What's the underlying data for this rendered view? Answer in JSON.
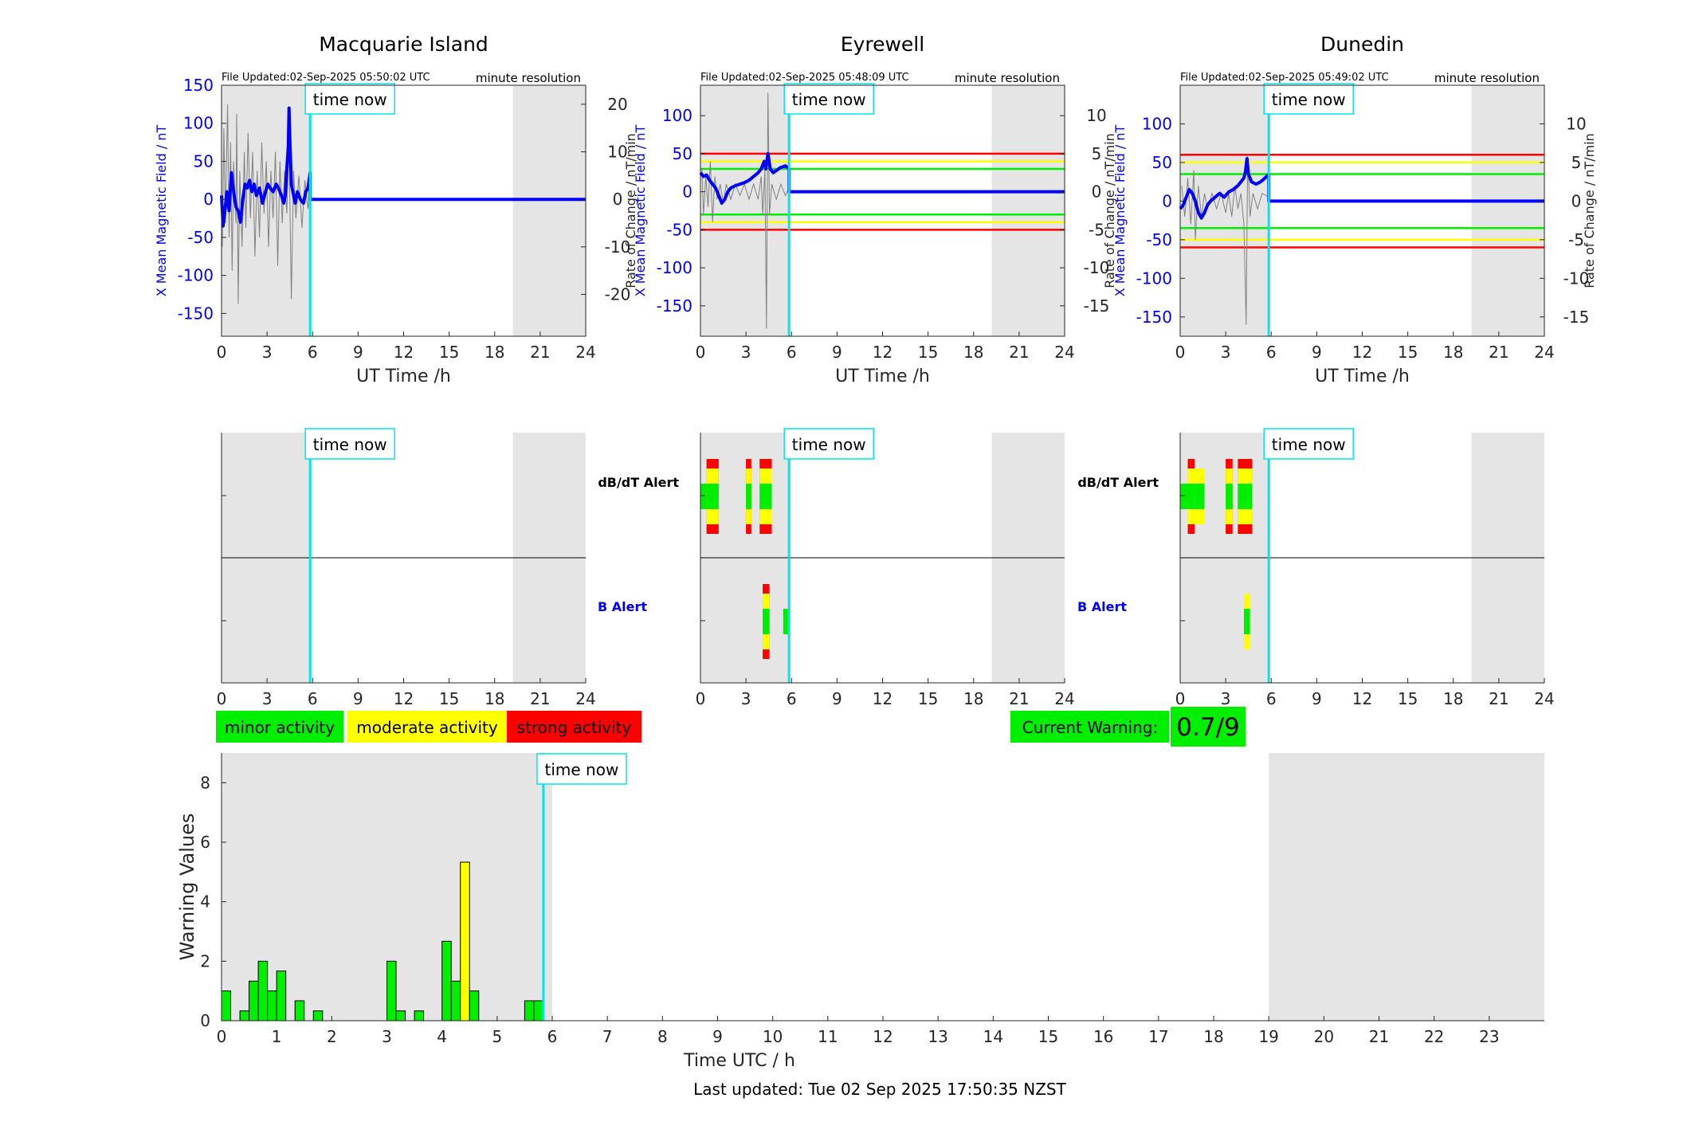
{
  "common": {
    "time_now_label": "time now",
    "resolution_label": "minute resolution",
    "x_label": "UT Time /h",
    "left_ylabel": "X Mean Magnetic Field / nT",
    "right_ylabel": "Rate of Change / nT/min",
    "x_ticks": [
      0,
      3,
      6,
      9,
      12,
      15,
      18,
      21,
      24
    ],
    "time_now_hour": 5.84,
    "night_shade_start_hour": 19.2,
    "dbdt_alert_label": "dB/dT Alert",
    "b_alert_label": "B Alert"
  },
  "colors": {
    "minor": "#00ee00",
    "moderate": "#ffff00",
    "strong": "#ff0000",
    "field_series": "#0000ff",
    "rate_series": "#808080",
    "time_now": "#00e5ee",
    "shade": "#e5e5e5"
  },
  "legend": {
    "minor": "minor activity",
    "moderate": "moderate activity",
    "strong": "strong activity"
  },
  "current_warning": {
    "label": "Current Warning:",
    "value": "0.7/9"
  },
  "footer": {
    "last_updated": "Last updated: Tue 02 Sep 2025 17:50:35 NZST"
  },
  "chart_data": [
    {
      "type": "line",
      "title": "Macquarie Island",
      "file_updated": "File Updated:02-Sep-2025 05:50:02 UTC",
      "ylim": [
        -180,
        150
      ],
      "y_ticks": [
        -150,
        -100,
        -50,
        0,
        50,
        100,
        150
      ],
      "y2lim": [
        -28.8,
        24
      ],
      "y2_ticks": [
        -20,
        -10,
        0,
        10,
        20
      ],
      "thresholds": [],
      "field": [
        [
          0,
          5
        ],
        [
          0.1,
          -35
        ],
        [
          0.2,
          -20
        ],
        [
          0.35,
          10
        ],
        [
          0.5,
          -15
        ],
        [
          0.65,
          35
        ],
        [
          0.8,
          10
        ],
        [
          0.95,
          -10
        ],
        [
          1.1,
          -15
        ],
        [
          1.25,
          -30
        ],
        [
          1.4,
          0
        ],
        [
          1.55,
          20
        ],
        [
          1.7,
          15
        ],
        [
          1.85,
          25
        ],
        [
          2.0,
          10
        ],
        [
          2.15,
          20
        ],
        [
          2.3,
          5
        ],
        [
          2.5,
          15
        ],
        [
          2.7,
          -5
        ],
        [
          2.9,
          10
        ],
        [
          3.05,
          20
        ],
        [
          3.2,
          15
        ],
        [
          3.4,
          10
        ],
        [
          3.6,
          20
        ],
        [
          3.75,
          15
        ],
        [
          3.95,
          5
        ],
        [
          4.1,
          -5
        ],
        [
          4.2,
          5
        ],
        [
          4.3,
          40
        ],
        [
          4.4,
          70
        ],
        [
          4.45,
          120
        ],
        [
          4.5,
          80
        ],
        [
          4.6,
          20
        ],
        [
          4.7,
          10
        ],
        [
          4.85,
          -5
        ],
        [
          5.0,
          10
        ],
        [
          5.2,
          0
        ],
        [
          5.4,
          -5
        ],
        [
          5.55,
          10
        ],
        [
          5.7,
          15
        ],
        [
          5.84,
          35
        ],
        [
          5.84,
          0
        ],
        [
          24,
          0
        ]
      ],
      "rate": [
        [
          0.05,
          -10
        ],
        [
          0.15,
          15
        ],
        [
          0.25,
          -5
        ],
        [
          0.4,
          20
        ],
        [
          0.5,
          -8
        ],
        [
          0.6,
          12
        ],
        [
          0.7,
          -15
        ],
        [
          0.8,
          8
        ],
        [
          0.95,
          -5
        ],
        [
          1.0,
          18
        ],
        [
          1.1,
          -22
        ],
        [
          1.2,
          6
        ],
        [
          1.35,
          -10
        ],
        [
          1.5,
          10
        ],
        [
          1.6,
          -6
        ],
        [
          1.75,
          14
        ],
        [
          1.9,
          -4
        ],
        [
          2.05,
          10
        ],
        [
          2.2,
          -12
        ],
        [
          2.35,
          6
        ],
        [
          2.5,
          -8
        ],
        [
          2.65,
          12
        ],
        [
          2.8,
          -3
        ],
        [
          2.95,
          8
        ],
        [
          3.1,
          -10
        ],
        [
          3.25,
          6
        ],
        [
          3.4,
          -4
        ],
        [
          3.55,
          10
        ],
        [
          3.7,
          -14
        ],
        [
          3.85,
          8
        ],
        [
          4.0,
          -5
        ],
        [
          4.15,
          6
        ],
        [
          4.3,
          -3
        ],
        [
          4.45,
          12
        ],
        [
          4.6,
          -21
        ],
        [
          4.75,
          6
        ],
        [
          4.9,
          -4
        ],
        [
          5.1,
          5
        ],
        [
          5.3,
          -6
        ],
        [
          5.5,
          4
        ],
        [
          5.7,
          -2
        ],
        [
          5.84,
          3
        ]
      ],
      "dbdt_alerts": [],
      "b_alerts": []
    },
    {
      "type": "line",
      "title": "Eyrewell",
      "file_updated": "File Updated:02-Sep-2025 05:48:09 UTC",
      "ylim": [
        -190,
        140
      ],
      "y_ticks": [
        -150,
        -100,
        -50,
        0,
        50,
        100
      ],
      "y2lim": [
        -19,
        14
      ],
      "y2_ticks": [
        -15,
        -10,
        -5,
        0,
        5,
        10
      ],
      "thresholds": [
        {
          "level": "strong",
          "value": 50
        },
        {
          "level": "moderate",
          "value": 40
        },
        {
          "level": "minor",
          "value": 30
        },
        {
          "level": "minor",
          "value": -30
        },
        {
          "level": "moderate",
          "value": -40
        },
        {
          "level": "strong",
          "value": -50
        }
      ],
      "field": [
        [
          0,
          25
        ],
        [
          0.2,
          20
        ],
        [
          0.4,
          22
        ],
        [
          0.6,
          15
        ],
        [
          0.8,
          10
        ],
        [
          1.0,
          5
        ],
        [
          1.2,
          -5
        ],
        [
          1.4,
          -15
        ],
        [
          1.6,
          -10
        ],
        [
          1.8,
          0
        ],
        [
          2.0,
          5
        ],
        [
          2.3,
          8
        ],
        [
          2.6,
          10
        ],
        [
          2.9,
          12
        ],
        [
          3.2,
          15
        ],
        [
          3.5,
          20
        ],
        [
          3.8,
          25
        ],
        [
          4.0,
          30
        ],
        [
          4.2,
          40
        ],
        [
          4.3,
          30
        ],
        [
          4.45,
          50
        ],
        [
          4.6,
          30
        ],
        [
          4.8,
          25
        ],
        [
          5.0,
          28
        ],
        [
          5.3,
          32
        ],
        [
          5.6,
          34
        ],
        [
          5.84,
          30
        ],
        [
          5.84,
          0
        ],
        [
          24,
          0
        ]
      ],
      "rate": [
        [
          0.1,
          3
        ],
        [
          0.2,
          -3
        ],
        [
          0.35,
          2
        ],
        [
          0.5,
          -2
        ],
        [
          0.65,
          4
        ],
        [
          0.8,
          -4
        ],
        [
          0.95,
          2
        ],
        [
          1.1,
          -1
        ],
        [
          1.3,
          1
        ],
        [
          1.5,
          -1.5
        ],
        [
          1.7,
          1
        ],
        [
          2.0,
          -1
        ],
        [
          2.3,
          1
        ],
        [
          2.6,
          -0.5
        ],
        [
          2.9,
          1
        ],
        [
          3.2,
          -1
        ],
        [
          3.5,
          1
        ],
        [
          3.8,
          -1
        ],
        [
          4.0,
          2
        ],
        [
          4.1,
          -3
        ],
        [
          4.25,
          3
        ],
        [
          4.35,
          -18
        ],
        [
          4.45,
          13
        ],
        [
          4.55,
          -3
        ],
        [
          4.7,
          1
        ],
        [
          5.0,
          -1
        ],
        [
          5.3,
          1
        ],
        [
          5.6,
          -0.5
        ],
        [
          5.84,
          0.5
        ]
      ],
      "dbdt_alerts": [
        {
          "start": 0,
          "end": 0.4,
          "level": "minor"
        },
        {
          "start": 0.4,
          "end": 1.2,
          "level": "strong"
        },
        {
          "start": 3.0,
          "end": 3.35,
          "level": "strong"
        },
        {
          "start": 3.9,
          "end": 4.7,
          "level": "strong"
        }
      ],
      "b_alerts": [
        {
          "start": 4.1,
          "end": 4.55,
          "level": "strong"
        },
        {
          "start": 5.45,
          "end": 5.85,
          "level": "minor"
        }
      ]
    },
    {
      "type": "line",
      "title": "Dunedin",
      "file_updated": "File Updated:02-Sep-2025 05:49:02 UTC",
      "ylim": [
        -175,
        150
      ],
      "y_ticks": [
        -150,
        -100,
        -50,
        0,
        50,
        100
      ],
      "y2lim": [
        -17.5,
        15
      ],
      "y2_ticks": [
        -15,
        -10,
        -5,
        0,
        5,
        10
      ],
      "thresholds": [
        {
          "level": "strong",
          "value": 60
        },
        {
          "level": "moderate",
          "value": 50
        },
        {
          "level": "minor",
          "value": 35
        },
        {
          "level": "minor",
          "value": -35
        },
        {
          "level": "moderate",
          "value": -50
        },
        {
          "level": "strong",
          "value": -60
        }
      ],
      "field": [
        [
          0,
          -10
        ],
        [
          0.2,
          -5
        ],
        [
          0.4,
          5
        ],
        [
          0.6,
          15
        ],
        [
          0.8,
          10
        ],
        [
          1.0,
          0
        ],
        [
          1.2,
          -15
        ],
        [
          1.4,
          -22
        ],
        [
          1.6,
          -15
        ],
        [
          1.8,
          -5
        ],
        [
          2.0,
          0
        ],
        [
          2.3,
          5
        ],
        [
          2.6,
          10
        ],
        [
          2.9,
          5
        ],
        [
          3.2,
          12
        ],
        [
          3.5,
          15
        ],
        [
          3.8,
          20
        ],
        [
          4.0,
          25
        ],
        [
          4.2,
          30
        ],
        [
          4.3,
          38
        ],
        [
          4.4,
          55
        ],
        [
          4.5,
          35
        ],
        [
          4.7,
          25
        ],
        [
          5.0,
          22
        ],
        [
          5.3,
          25
        ],
        [
          5.6,
          30
        ],
        [
          5.84,
          35
        ],
        [
          5.84,
          0
        ],
        [
          24,
          0
        ]
      ],
      "rate": [
        [
          0.1,
          2
        ],
        [
          0.3,
          -2
        ],
        [
          0.5,
          3
        ],
        [
          0.7,
          -3
        ],
        [
          0.9,
          4
        ],
        [
          1.0,
          -5
        ],
        [
          1.2,
          2
        ],
        [
          1.4,
          -2
        ],
        [
          1.6,
          1
        ],
        [
          1.8,
          -1
        ],
        [
          2.1,
          1
        ],
        [
          2.4,
          -1
        ],
        [
          2.7,
          1
        ],
        [
          3.0,
          -1.5
        ],
        [
          3.2,
          1
        ],
        [
          3.4,
          -2
        ],
        [
          3.6,
          2
        ],
        [
          3.8,
          -1
        ],
        [
          4.0,
          1
        ],
        [
          4.2,
          -3
        ],
        [
          4.35,
          -16
        ],
        [
          4.45,
          6
        ],
        [
          4.6,
          -2
        ],
        [
          4.8,
          1
        ],
        [
          5.1,
          -1
        ],
        [
          5.4,
          1
        ],
        [
          5.84,
          0.5
        ]
      ],
      "dbdt_alerts": [
        {
          "start": 0,
          "end": 0.5,
          "level": "minor"
        },
        {
          "start": 0.5,
          "end": 0.95,
          "level": "strong"
        },
        {
          "start": 0.95,
          "end": 1.6,
          "level": "moderate"
        },
        {
          "start": 3.0,
          "end": 3.45,
          "level": "strong"
        },
        {
          "start": 3.8,
          "end": 4.75,
          "level": "strong"
        }
      ],
      "b_alerts": [
        {
          "start": 4.2,
          "end": 4.6,
          "level": "moderate"
        }
      ]
    },
    {
      "type": "bar",
      "title": "",
      "xlabel": "Time UTC / h",
      "ylabel": "Warning Values",
      "xlim": [
        0,
        24
      ],
      "ylim": [
        0,
        9
      ],
      "y_ticks": [
        0,
        2,
        4,
        6,
        8
      ],
      "x_ticks": [
        0,
        1,
        2,
        3,
        4,
        5,
        6,
        7,
        8,
        9,
        10,
        11,
        12,
        13,
        14,
        15,
        16,
        17,
        18,
        19,
        20,
        21,
        22,
        23
      ],
      "shade_night": [
        19,
        24
      ],
      "bar_width_hours": 0.1667,
      "bars": [
        {
          "x": 0.0833,
          "value": 1,
          "level": "minor"
        },
        {
          "x": 0.4167,
          "value": 0.33,
          "level": "minor"
        },
        {
          "x": 0.5833,
          "value": 1.33,
          "level": "minor"
        },
        {
          "x": 0.75,
          "value": 2,
          "level": "minor"
        },
        {
          "x": 0.9167,
          "value": 1,
          "level": "minor"
        },
        {
          "x": 1.0833,
          "value": 1.67,
          "level": "minor"
        },
        {
          "x": 1.4167,
          "value": 0.67,
          "level": "minor"
        },
        {
          "x": 1.75,
          "value": 0.33,
          "level": "minor"
        },
        {
          "x": 3.0833,
          "value": 2,
          "level": "minor"
        },
        {
          "x": 3.25,
          "value": 0.33,
          "level": "minor"
        },
        {
          "x": 3.5833,
          "value": 0.33,
          "level": "minor"
        },
        {
          "x": 4.0833,
          "value": 2.67,
          "level": "minor"
        },
        {
          "x": 4.25,
          "value": 1.33,
          "level": "minor"
        },
        {
          "x": 4.4167,
          "value": 5.33,
          "level": "moderate"
        },
        {
          "x": 4.5833,
          "value": 1,
          "level": "minor"
        },
        {
          "x": 5.5833,
          "value": 0.67,
          "level": "minor"
        },
        {
          "x": 5.75,
          "value": 0.67,
          "level": "minor"
        }
      ]
    }
  ]
}
